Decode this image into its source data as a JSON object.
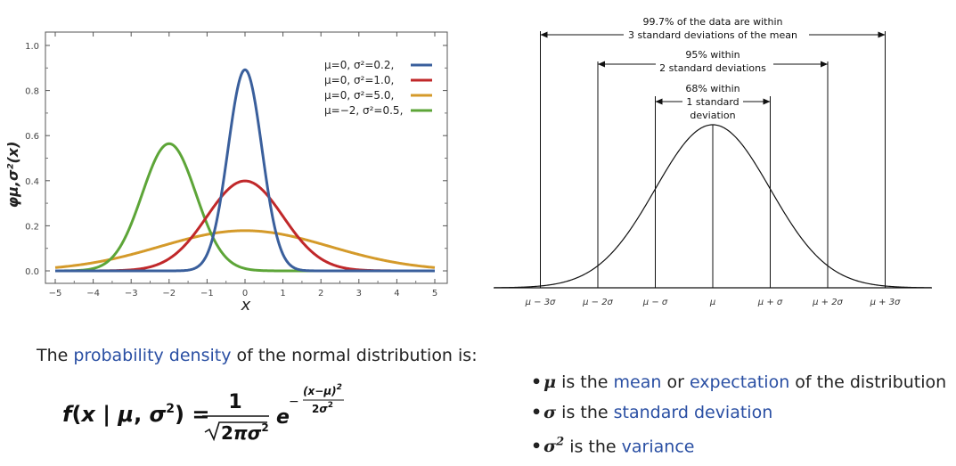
{
  "chart_data": [
    {
      "type": "line",
      "xlabel": "x",
      "ylabel": "φμ,σ²(x)",
      "xlim": [
        -5,
        5
      ],
      "ylim": [
        0,
        1.0
      ],
      "x_ticks": [
        "−5",
        "−4",
        "−3",
        "−2",
        "−1",
        "0",
        "1",
        "2",
        "3",
        "4",
        "5"
      ],
      "y_ticks": [
        "0.0",
        "0.2",
        "0.4",
        "0.6",
        "0.8",
        "1.0"
      ],
      "series": [
        {
          "name": "μ=0,    σ²=0.2,",
          "mu": 0,
          "variance": 0.2,
          "color": "#3a5f9c"
        },
        {
          "name": "μ=0,    σ²=1.0,",
          "mu": 0,
          "variance": 1.0,
          "color": "#c0282a"
        },
        {
          "name": "μ=0,    σ²=5.0,",
          "mu": 0,
          "variance": 5.0,
          "color": "#d49a2a"
        },
        {
          "name": "μ=−2,  σ²=0.5,",
          "mu": -2,
          "variance": 0.5,
          "color": "#5da538"
        }
      ],
      "legend_position": "top-right",
      "grid": false
    },
    {
      "type": "line",
      "x_ticks": [
        "μ − 3σ",
        "μ − 2σ",
        "μ − σ",
        "μ",
        "μ + σ",
        "μ + 2σ",
        "μ + 3σ"
      ],
      "annotations": [
        {
          "lines": [
            "99.7% of the data are within",
            "3 standard deviations of the mean"
          ],
          "range_sigma": 3
        },
        {
          "lines": [
            "95% within",
            "2 standard deviations"
          ],
          "range_sigma": 2
        },
        {
          "lines": [
            "68% within",
            "1 standard",
            "deviation"
          ],
          "range_sigma": 1
        }
      ],
      "grid": false
    }
  ],
  "text": {
    "intro_prefix": "The",
    "intro_link": "probability density",
    "intro_suffix": "of the normal distribution is:"
  },
  "formula": {
    "lhs": "f(x | μ, σ²) =",
    "numerator": "1",
    "denominator": "√2πσ²",
    "base": "e",
    "exponent": "−(x−μ)²/2σ²"
  },
  "bullets": [
    {
      "symbol": "μ",
      "text_before": "is the",
      "link1": "mean",
      "middle": "or",
      "link2": "expectation",
      "text_after": "of the distribution"
    },
    {
      "symbol": "σ",
      "text_before": "is the",
      "link1": "standard deviation"
    },
    {
      "symbol": "σ",
      "symbol_sup": "2",
      "text_before": "is the",
      "link1": "variance"
    }
  ]
}
